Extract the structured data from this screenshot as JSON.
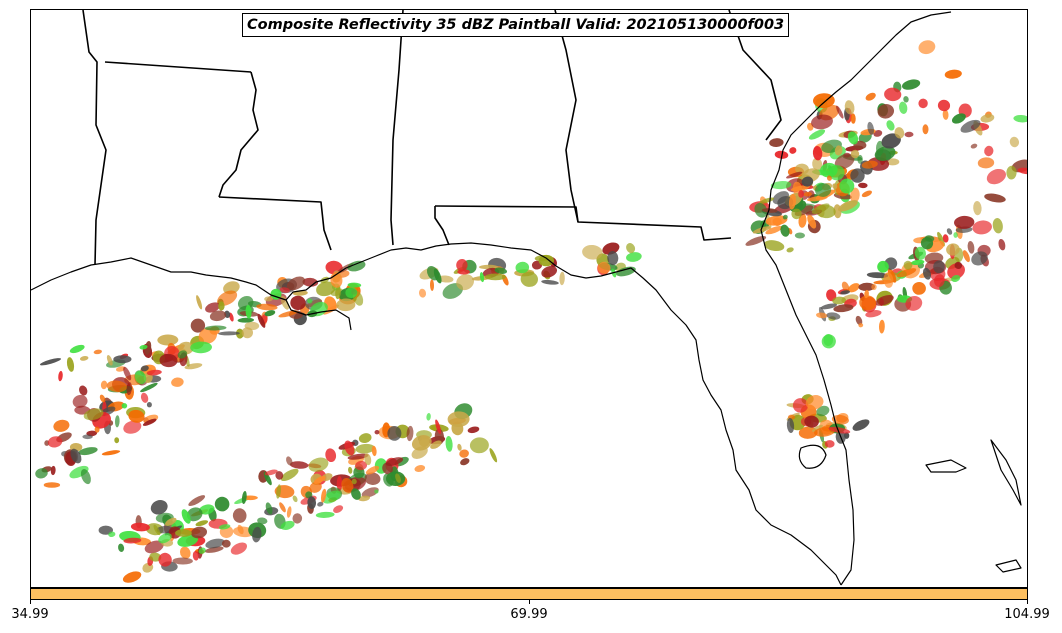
{
  "title": "Composite Reflectivity 35 dBZ Paintball Valid: 202105130000f003",
  "colorbar": {
    "color": "#fdbf60",
    "ticks": [
      "34.99",
      "69.99",
      "104.99"
    ]
  },
  "paintball_colors": [
    "#e8282b",
    "#9a1b1b",
    "#ff8b2a",
    "#f56a00",
    "#3fe03f",
    "#2e8b2e",
    "#9aa31c",
    "#8c3a2a",
    "#4a4a4a",
    "#c9a94a"
  ],
  "map_features": [
    "coastline",
    "state-borders"
  ]
}
